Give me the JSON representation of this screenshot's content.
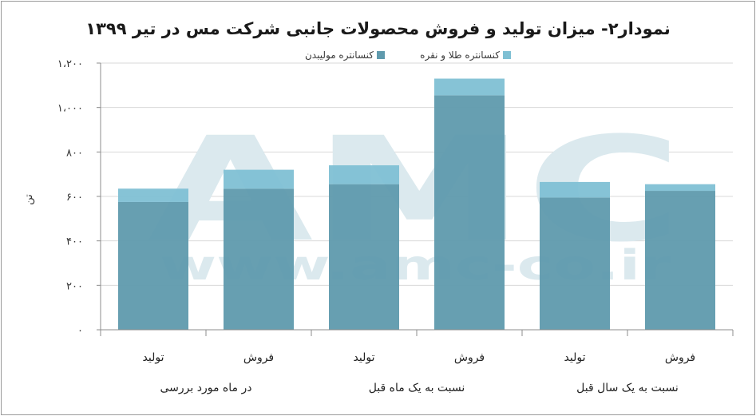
{
  "title": "نمودار۲- میزان تولید و فروش محصولات جانبی شرکت مس در تیر ۱۳۹۹",
  "watermark": {
    "brand": "AMC",
    "url": "www.amc-co.ir"
  },
  "colors": {
    "molybdenum": "#5f9aad",
    "gold_silver": "#7fc0d4",
    "grid": "#d9d9d9",
    "axis": "#8c8c8c",
    "watermark": "#dbe9ee"
  },
  "chart_data": {
    "type": "bar",
    "stacked": true,
    "ylabel": "تن",
    "ylim": [
      0,
      1200
    ],
    "yticks": [
      0,
      200,
      400,
      600,
      800,
      1000,
      1200
    ],
    "ytick_labels": [
      "۰",
      "۲۰۰",
      "۴۰۰",
      "۶۰۰",
      "۸۰۰",
      "۱،۰۰۰",
      "۱،۲۰۰"
    ],
    "grid": true,
    "legend_position": "top-center",
    "categories": [
      "تولید",
      "فروش",
      "تولید",
      "فروش",
      "تولید",
      "فروش"
    ],
    "groups": [
      {
        "label": "در ماه مورد بررسی",
        "span": [
          0,
          1
        ]
      },
      {
        "label": "نسبت به یک ماه قبل",
        "span": [
          2,
          3
        ]
      },
      {
        "label": "نسبت به یک سال قبل",
        "span": [
          4,
          5
        ]
      }
    ],
    "series": [
      {
        "name": "کنسانتره مولیبدن",
        "color": "#5f9aad",
        "values": [
          575,
          635,
          655,
          1055,
          595,
          625
        ]
      },
      {
        "name": "کنسانتره طلا و نقره",
        "color": "#7fc0d4",
        "values": [
          60,
          85,
          85,
          75,
          70,
          30
        ]
      }
    ]
  }
}
